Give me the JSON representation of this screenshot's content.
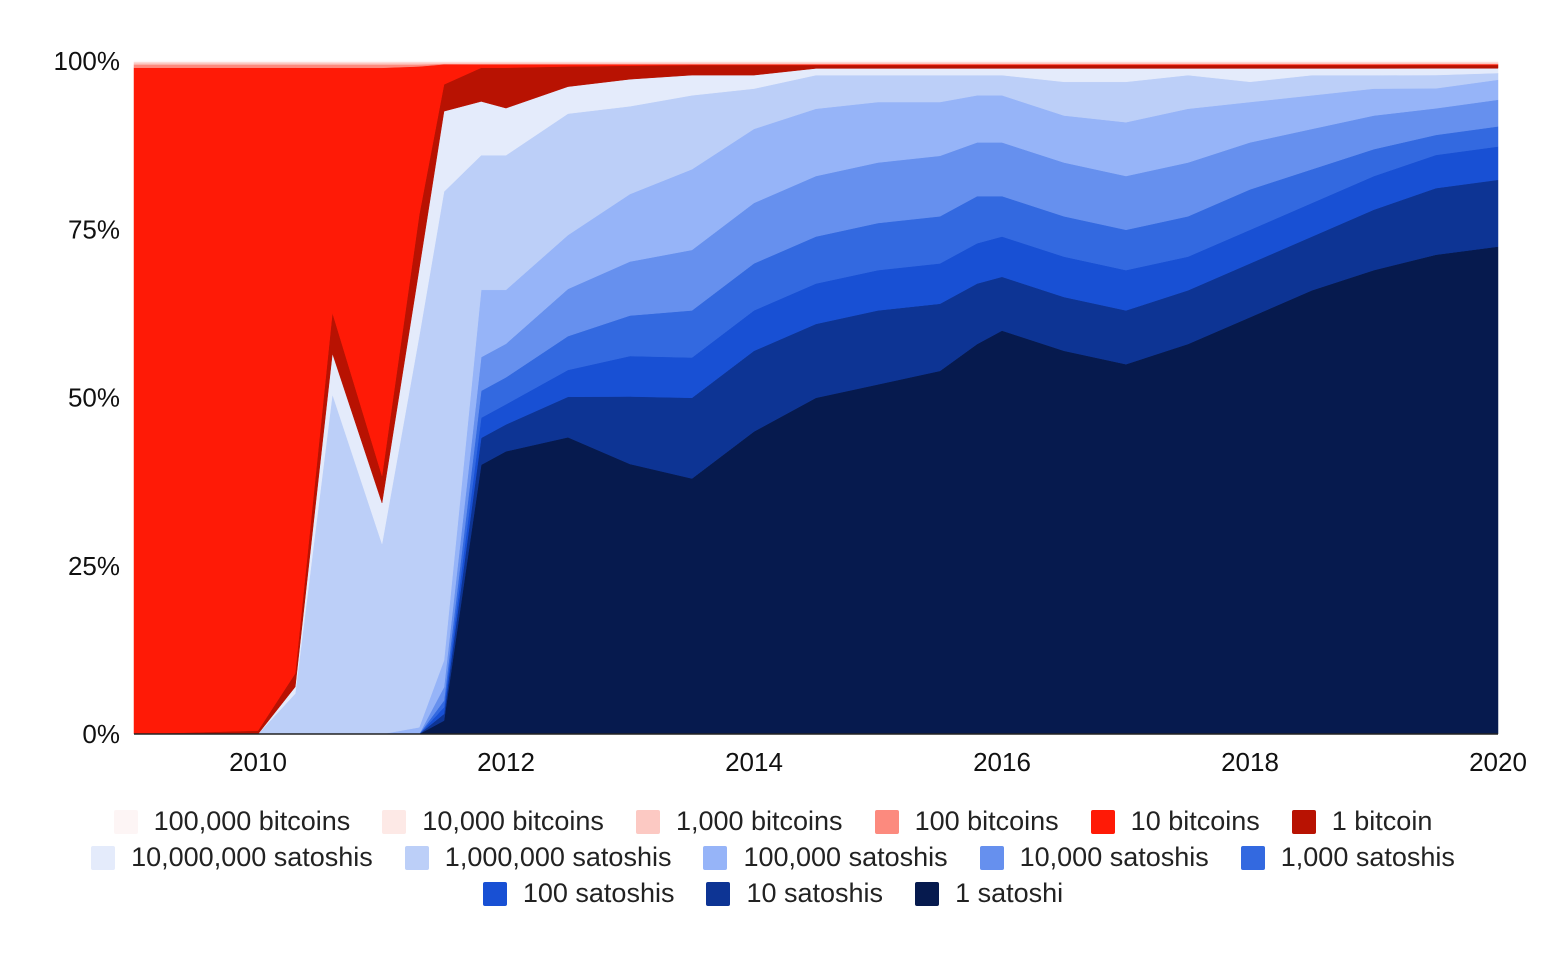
{
  "chart_data": {
    "type": "area",
    "stacked": true,
    "normalized": true,
    "x": [
      2009,
      2010,
      2010.3,
      2010.6,
      2011,
      2011.3,
      2011.5,
      2011.8,
      2012,
      2012.5,
      2013,
      2013.5,
      2014,
      2014.5,
      2015,
      2015.5,
      2015.8,
      2016,
      2016.5,
      2017,
      2017.5,
      2018,
      2018.5,
      2019,
      2019.5,
      2020
    ],
    "xlim": [
      2009,
      2020
    ],
    "x_ticks": [
      "2010",
      "2012",
      "2014",
      "2016",
      "2018",
      "2020"
    ],
    "y_ticks": [
      "0%",
      "25%",
      "50%",
      "75%",
      "100%"
    ],
    "ylim": [
      0,
      100
    ],
    "grid": false,
    "legend_position": "bottom",
    "series": [
      {
        "name": "1 satoshi",
        "color": "#061a4e",
        "values": [
          0,
          0,
          0,
          0,
          0,
          0,
          2,
          40,
          42,
          44,
          40,
          38,
          45,
          50,
          52,
          54,
          58,
          60,
          57,
          55,
          58,
          62,
          66,
          69,
          72,
          73
        ]
      },
      {
        "name": "10 satoshis",
        "color": "#0d3494",
        "values": [
          0,
          0,
          0,
          0,
          0,
          0,
          1,
          4,
          4,
          6,
          10,
          12,
          12,
          11,
          11,
          10,
          9,
          8,
          8,
          8,
          8,
          8,
          8,
          9,
          10,
          10
        ]
      },
      {
        "name": "100 satoshis",
        "color": "#1850d4",
        "values": [
          0,
          0,
          0,
          0,
          0,
          0,
          1,
          3,
          3,
          4,
          6,
          6,
          6,
          6,
          6,
          6,
          6,
          6,
          6,
          6,
          5,
          5,
          5,
          5,
          5,
          5
        ]
      },
      {
        "name": "1,000 satoshis",
        "color": "#3369e0",
        "values": [
          0,
          0,
          0,
          0,
          0,
          0,
          1,
          4,
          4,
          5,
          6,
          7,
          7,
          7,
          7,
          7,
          7,
          6,
          6,
          6,
          6,
          6,
          5,
          4,
          3,
          3
        ]
      },
      {
        "name": "10,000 satoshis",
        "color": "#6690ee",
        "values": [
          0,
          0,
          0,
          0,
          0,
          0,
          2,
          5,
          5,
          7,
          8,
          9,
          9,
          9,
          9,
          9,
          8,
          8,
          8,
          8,
          8,
          7,
          6,
          5,
          4,
          4
        ]
      },
      {
        "name": "100,000 satoshis",
        "color": "#96b4f8",
        "values": [
          0,
          0,
          0,
          0,
          0,
          1,
          4,
          10,
          8,
          8,
          10,
          12,
          11,
          10,
          9,
          8,
          7,
          7,
          7,
          8,
          8,
          6,
          5,
          4,
          3,
          3
        ]
      },
      {
        "name": "1,000,000 satoshis",
        "color": "#bccff8",
        "values": [
          0,
          0,
          6,
          50,
          28,
          58,
          70,
          20,
          20,
          18,
          13,
          11,
          6,
          5,
          4,
          4,
          3,
          3,
          5,
          6,
          5,
          3,
          3,
          2,
          2,
          1
        ]
      },
      {
        "name": "10,000,000 satoshis",
        "color": "#e4ebfb",
        "values": [
          0,
          0,
          1,
          6,
          6,
          10,
          12,
          8,
          7,
          4,
          4,
          3,
          2,
          1,
          1,
          1,
          1,
          1,
          2,
          2,
          1,
          2,
          1,
          1,
          1,
          0.7
        ]
      },
      {
        "name": "1 bitcoin",
        "color": "#b81202",
        "values": [
          0,
          0.5,
          2,
          6,
          4,
          8,
          4,
          5,
          6,
          3,
          2,
          1.5,
          1.5,
          0.5,
          0.5,
          0.5,
          0.5,
          0.5,
          0.5,
          0.5,
          0.5,
          0.5,
          0.5,
          0.5,
          0.5,
          0.5
        ]
      },
      {
        "name": "10 bitcoins",
        "color": "#ff1a06",
        "values": [
          99,
          98.5,
          90,
          36,
          60,
          22,
          3,
          0.5,
          0.5,
          0.3,
          0.2,
          0.1,
          0.1,
          0.1,
          0.1,
          0.1,
          0.1,
          0.1,
          0.1,
          0.1,
          0.1,
          0.1,
          0.1,
          0.1,
          0.1,
          0.1
        ]
      },
      {
        "name": "100 bitcoins",
        "color": "#fc8a7e",
        "values": [
          0.5,
          0.5,
          0.5,
          0.5,
          0.5,
          0.3,
          0.1,
          0.1,
          0.1,
          0.1,
          0.1,
          0.1,
          0.1,
          0.1,
          0.1,
          0.1,
          0.1,
          0.1,
          0.1,
          0.1,
          0.1,
          0.1,
          0.1,
          0.1,
          0.1,
          0.1
        ]
      },
      {
        "name": "1,000 bitcoins",
        "color": "#fcc9c3",
        "values": [
          0.3,
          0.3,
          0.3,
          0.3,
          0.3,
          0.3,
          0.2,
          0.2,
          0.2,
          0.2,
          0.2,
          0.2,
          0.2,
          0.2,
          0.2,
          0.2,
          0.2,
          0.2,
          0.2,
          0.2,
          0.2,
          0.2,
          0.2,
          0.2,
          0.2,
          0.2
        ]
      },
      {
        "name": "10,000 bitcoins",
        "color": "#fde9e6",
        "values": [
          0.1,
          0.1,
          0.1,
          0.1,
          0.1,
          0.1,
          0.1,
          0.1,
          0.1,
          0.1,
          0.1,
          0.1,
          0.1,
          0.1,
          0.1,
          0.1,
          0.1,
          0.1,
          0.1,
          0.1,
          0.1,
          0.1,
          0.1,
          0.1,
          0.1,
          0.1
        ]
      },
      {
        "name": "100,000 bitcoins",
        "color": "#fdf5f5",
        "values": [
          0.1,
          0.1,
          0.1,
          0.1,
          0.1,
          0.1,
          0.1,
          0.1,
          0.1,
          0.1,
          0.1,
          0.1,
          0.1,
          0.1,
          0.1,
          0.1,
          0.1,
          0.1,
          0.1,
          0.1,
          0.1,
          0.1,
          0.1,
          0.1,
          0.1,
          0.1
        ]
      }
    ],
    "legend_rows": [
      [
        "100,000 bitcoins",
        "10,000 bitcoins",
        "1,000 bitcoins",
        "100 bitcoins",
        "10 bitcoins",
        "1 bitcoin"
      ],
      [
        "10,000,000 satoshis",
        "1,000,000 satoshis",
        "100,000 satoshis",
        "10,000 satoshis",
        "1,000 satoshis"
      ],
      [
        "100 satoshis",
        "10 satoshis",
        "1 satoshi"
      ]
    ]
  }
}
